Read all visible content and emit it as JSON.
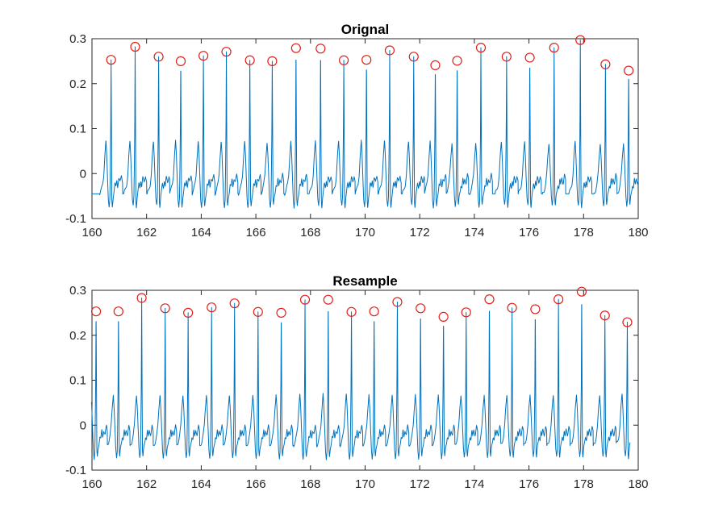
{
  "figure_colors": {
    "background": "#ffffff",
    "signal": "#0072BD",
    "peak_marker": "#e0201b",
    "axes": "#262626"
  },
  "chart_data": [
    {
      "type": "line",
      "title": "Orignal",
      "xlabel": "",
      "ylabel": "",
      "xlim": [
        160,
        180
      ],
      "ylim": [
        -0.1,
        0.3
      ],
      "xticks": [
        160,
        162,
        164,
        166,
        168,
        170,
        172,
        174,
        176,
        178,
        180
      ],
      "yticks": [
        -0.1,
        0,
        0.1,
        0.2,
        0.3
      ],
      "ytick_labels": [
        "-0.1",
        "0",
        "0.1",
        "0.2",
        "0.3"
      ],
      "grid": false,
      "signal_domain": [
        159.98,
        180.0
      ],
      "series": [
        {
          "marker": "line",
          "peaks_x": [
            160.7,
            161.58,
            162.44,
            163.25,
            164.08,
            164.92,
            165.78,
            166.6,
            167.47,
            168.37,
            169.22,
            170.05,
            170.9,
            171.78,
            172.57,
            173.37,
            174.24,
            175.18,
            176.03,
            176.92,
            177.88,
            178.8,
            179.65
          ],
          "peaks_y": [
            0.253,
            0.282,
            0.26,
            0.25,
            0.262,
            0.271,
            0.252,
            0.25,
            0.279,
            0.278,
            0.252,
            0.253,
            0.274,
            0.26,
            0.241,
            0.251,
            0.28,
            0.26,
            0.258,
            0.28,
            0.297,
            0.243,
            0.229
          ]
        },
        {
          "marker": "circle",
          "x": [
            160.7,
            161.58,
            162.44,
            163.25,
            164.08,
            164.92,
            165.78,
            166.6,
            167.47,
            168.37,
            169.22,
            170.05,
            170.9,
            171.78,
            172.57,
            173.37,
            174.24,
            175.18,
            176.03,
            176.92,
            177.88,
            178.8,
            179.65
          ],
          "y": [
            0.253,
            0.282,
            0.26,
            0.25,
            0.262,
            0.271,
            0.252,
            0.25,
            0.279,
            0.278,
            0.252,
            0.253,
            0.274,
            0.26,
            0.241,
            0.251,
            0.28,
            0.26,
            0.258,
            0.28,
            0.297,
            0.243,
            0.229
          ]
        }
      ]
    },
    {
      "type": "line",
      "title": "Resample",
      "xlabel": "",
      "ylabel": "",
      "xlim": [
        160,
        180
      ],
      "ylim": [
        -0.1,
        0.3
      ],
      "xticks": [
        160,
        162,
        164,
        166,
        168,
        170,
        172,
        174,
        176,
        178,
        180
      ],
      "yticks": [
        -0.1,
        0,
        0.1,
        0.2,
        0.3
      ],
      "ytick_labels": [
        "-0.1",
        "0",
        "0.1",
        "0.2",
        "0.3"
      ],
      "grid": false,
      "signal_domain": [
        159.98,
        179.7
      ],
      "series": [
        {
          "marker": "line",
          "peaks_x": [
            160.15,
            160.97,
            161.82,
            162.68,
            163.52,
            164.38,
            165.22,
            166.08,
            166.93,
            167.8,
            168.65,
            169.5,
            170.33,
            171.18,
            172.03,
            172.87,
            173.7,
            174.55,
            175.38,
            176.23,
            177.08,
            177.93,
            178.78,
            179.6
          ],
          "peaks_y": [
            0.253,
            0.253,
            0.283,
            0.26,
            0.25,
            0.262,
            0.271,
            0.252,
            0.25,
            0.279,
            0.279,
            0.252,
            0.253,
            0.274,
            0.26,
            0.241,
            0.251,
            0.28,
            0.261,
            0.258,
            0.28,
            0.297,
            0.244,
            0.229
          ]
        },
        {
          "marker": "circle",
          "x": [
            160.15,
            160.97,
            161.82,
            162.68,
            163.52,
            164.38,
            165.22,
            166.08,
            166.93,
            167.8,
            168.65,
            169.5,
            170.33,
            171.18,
            172.03,
            172.87,
            173.7,
            174.55,
            175.38,
            176.23,
            177.08,
            177.93,
            178.78,
            179.6
          ],
          "y": [
            0.253,
            0.253,
            0.283,
            0.26,
            0.25,
            0.262,
            0.271,
            0.252,
            0.25,
            0.279,
            0.279,
            0.252,
            0.253,
            0.274,
            0.26,
            0.241,
            0.251,
            0.28,
            0.261,
            0.258,
            0.28,
            0.297,
            0.244,
            0.229
          ]
        }
      ]
    }
  ]
}
